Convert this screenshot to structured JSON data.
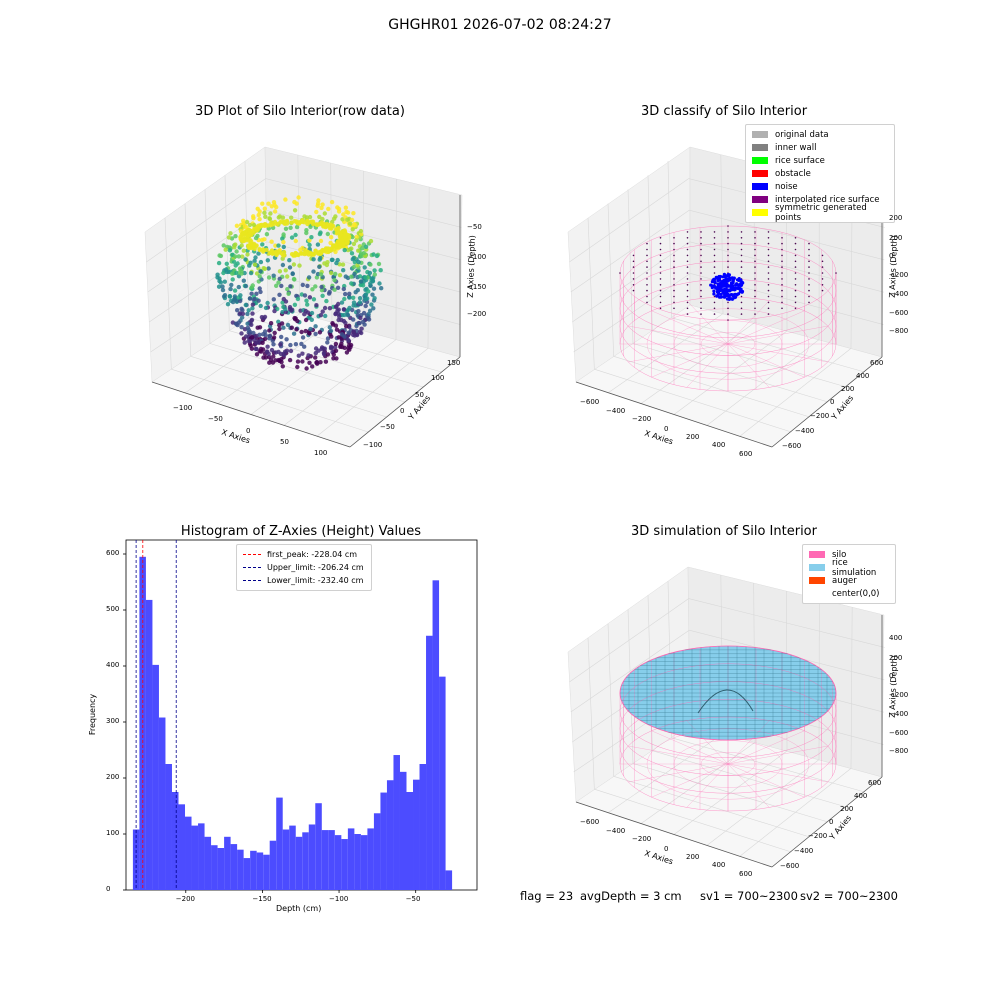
{
  "figure_title": "GHGHR01 2026-07-02 08:24:27",
  "colors": {
    "silo": "#ff69b4",
    "rice": "#87ceeb",
    "noise": "#0000ff",
    "hist": "#4c4cff",
    "auger": "#ff4500"
  },
  "panels": {
    "raw": {
      "title": "3D Plot of Silo Interior(row data)",
      "xlabel": "X Axies",
      "ylabel": "Y Axies",
      "zlabel": "Z Axies (Depth)",
      "xticks": [
        "−100",
        "−50",
        "0",
        "50",
        "100"
      ],
      "yticks": [
        "150",
        "100",
        "50",
        "0",
        "−50",
        "−100"
      ],
      "zticks": [
        "−50",
        "−100",
        "−150",
        "−200"
      ],
      "colormap": "viridis"
    },
    "classify": {
      "title": "3D classify of Silo Interior",
      "xlabel": "X Axies",
      "ylabel": "Y Axies",
      "zlabel": "Z Axies (Depth)",
      "xticks": [
        "−600",
        "−400",
        "−200",
        "0",
        "200",
        "400",
        "600"
      ],
      "yticks": [
        "600",
        "400",
        "200",
        "0",
        "−200",
        "−400",
        "−600"
      ],
      "zticks": [
        "200",
        "0",
        "−200",
        "−400",
        "−600",
        "−800"
      ],
      "legend": [
        {
          "label": "original data",
          "color": "#b0b0b0"
        },
        {
          "label": "inner wall",
          "color": "#808080"
        },
        {
          "label": "rice surface",
          "color": "#00ff00"
        },
        {
          "label": "obstacle",
          "color": "#ff0000"
        },
        {
          "label": "noise",
          "color": "#0000ff"
        },
        {
          "label": "interpolated rice surface",
          "color": "#800080"
        },
        {
          "label": "symmetric generated points",
          "color": "#ffff00"
        }
      ]
    },
    "simulation": {
      "title": "3D simulation of Silo Interior",
      "xlabel": "X Axies",
      "ylabel": "Y Axies",
      "zlabel": "Z Axies (Depth)",
      "xticks": [
        "−600",
        "−400",
        "−200",
        "0",
        "200",
        "400",
        "600"
      ],
      "yticks": [
        "600",
        "400",
        "200",
        "0",
        "−200",
        "−400",
        "−600"
      ],
      "zticks": [
        "400",
        "200",
        "0",
        "−200",
        "−400",
        "−600",
        "−800"
      ],
      "legend": [
        {
          "label": "silo",
          "color": "#ff69b4"
        },
        {
          "label": "rice simulation",
          "color": "#87ceeb"
        },
        {
          "label": "auger",
          "color": "#ff4500"
        },
        {
          "label": "center(0,0)",
          "color": ""
        }
      ]
    }
  },
  "footer": {
    "flag": "flag = 23",
    "avg_depth": "avgDepth = 3 cm",
    "sv1": "sv1 = 700~2300",
    "sv2": "sv2 = 700~2300"
  },
  "chart_data": [
    {
      "type": "histogram",
      "title": "Histogram of Z-Axies (Height) Values",
      "xlabel": "Depth (cm)",
      "ylabel": "Frequency",
      "xlim": [
        -239,
        -10
      ],
      "ylim": [
        0,
        625
      ],
      "xticks": [
        -200,
        -150,
        -100,
        -50
      ],
      "xtick_labels": [
        "−200",
        "−150",
        "−100",
        "−50"
      ],
      "yticks": [
        0,
        100,
        200,
        300,
        400,
        500,
        600
      ],
      "bin_start": -234.5,
      "bin_width": 4.25,
      "values": [
        108,
        595,
        518,
        402,
        308,
        225,
        175,
        153,
        131,
        115,
        119,
        95,
        80,
        75,
        95,
        82,
        72,
        57,
        70,
        67,
        63,
        88,
        165,
        108,
        115,
        95,
        103,
        117,
        155,
        107,
        107,
        98,
        91,
        110,
        100,
        98,
        110,
        137,
        174,
        196,
        241,
        211,
        175,
        197,
        225,
        454,
        553,
        381,
        35
      ],
      "color": "#4c4cff",
      "vlines": [
        {
          "label": "first_peak: -228.04 cm",
          "x": -228.04,
          "color": "#ff0000"
        },
        {
          "label": "Upper_limit: -206.24 cm",
          "x": -206.24,
          "color": "#00008b"
        },
        {
          "label": "Lower_limit: -232.40 cm",
          "x": -232.4,
          "color": "#00008b"
        }
      ],
      "legend_position": "top-center"
    }
  ]
}
